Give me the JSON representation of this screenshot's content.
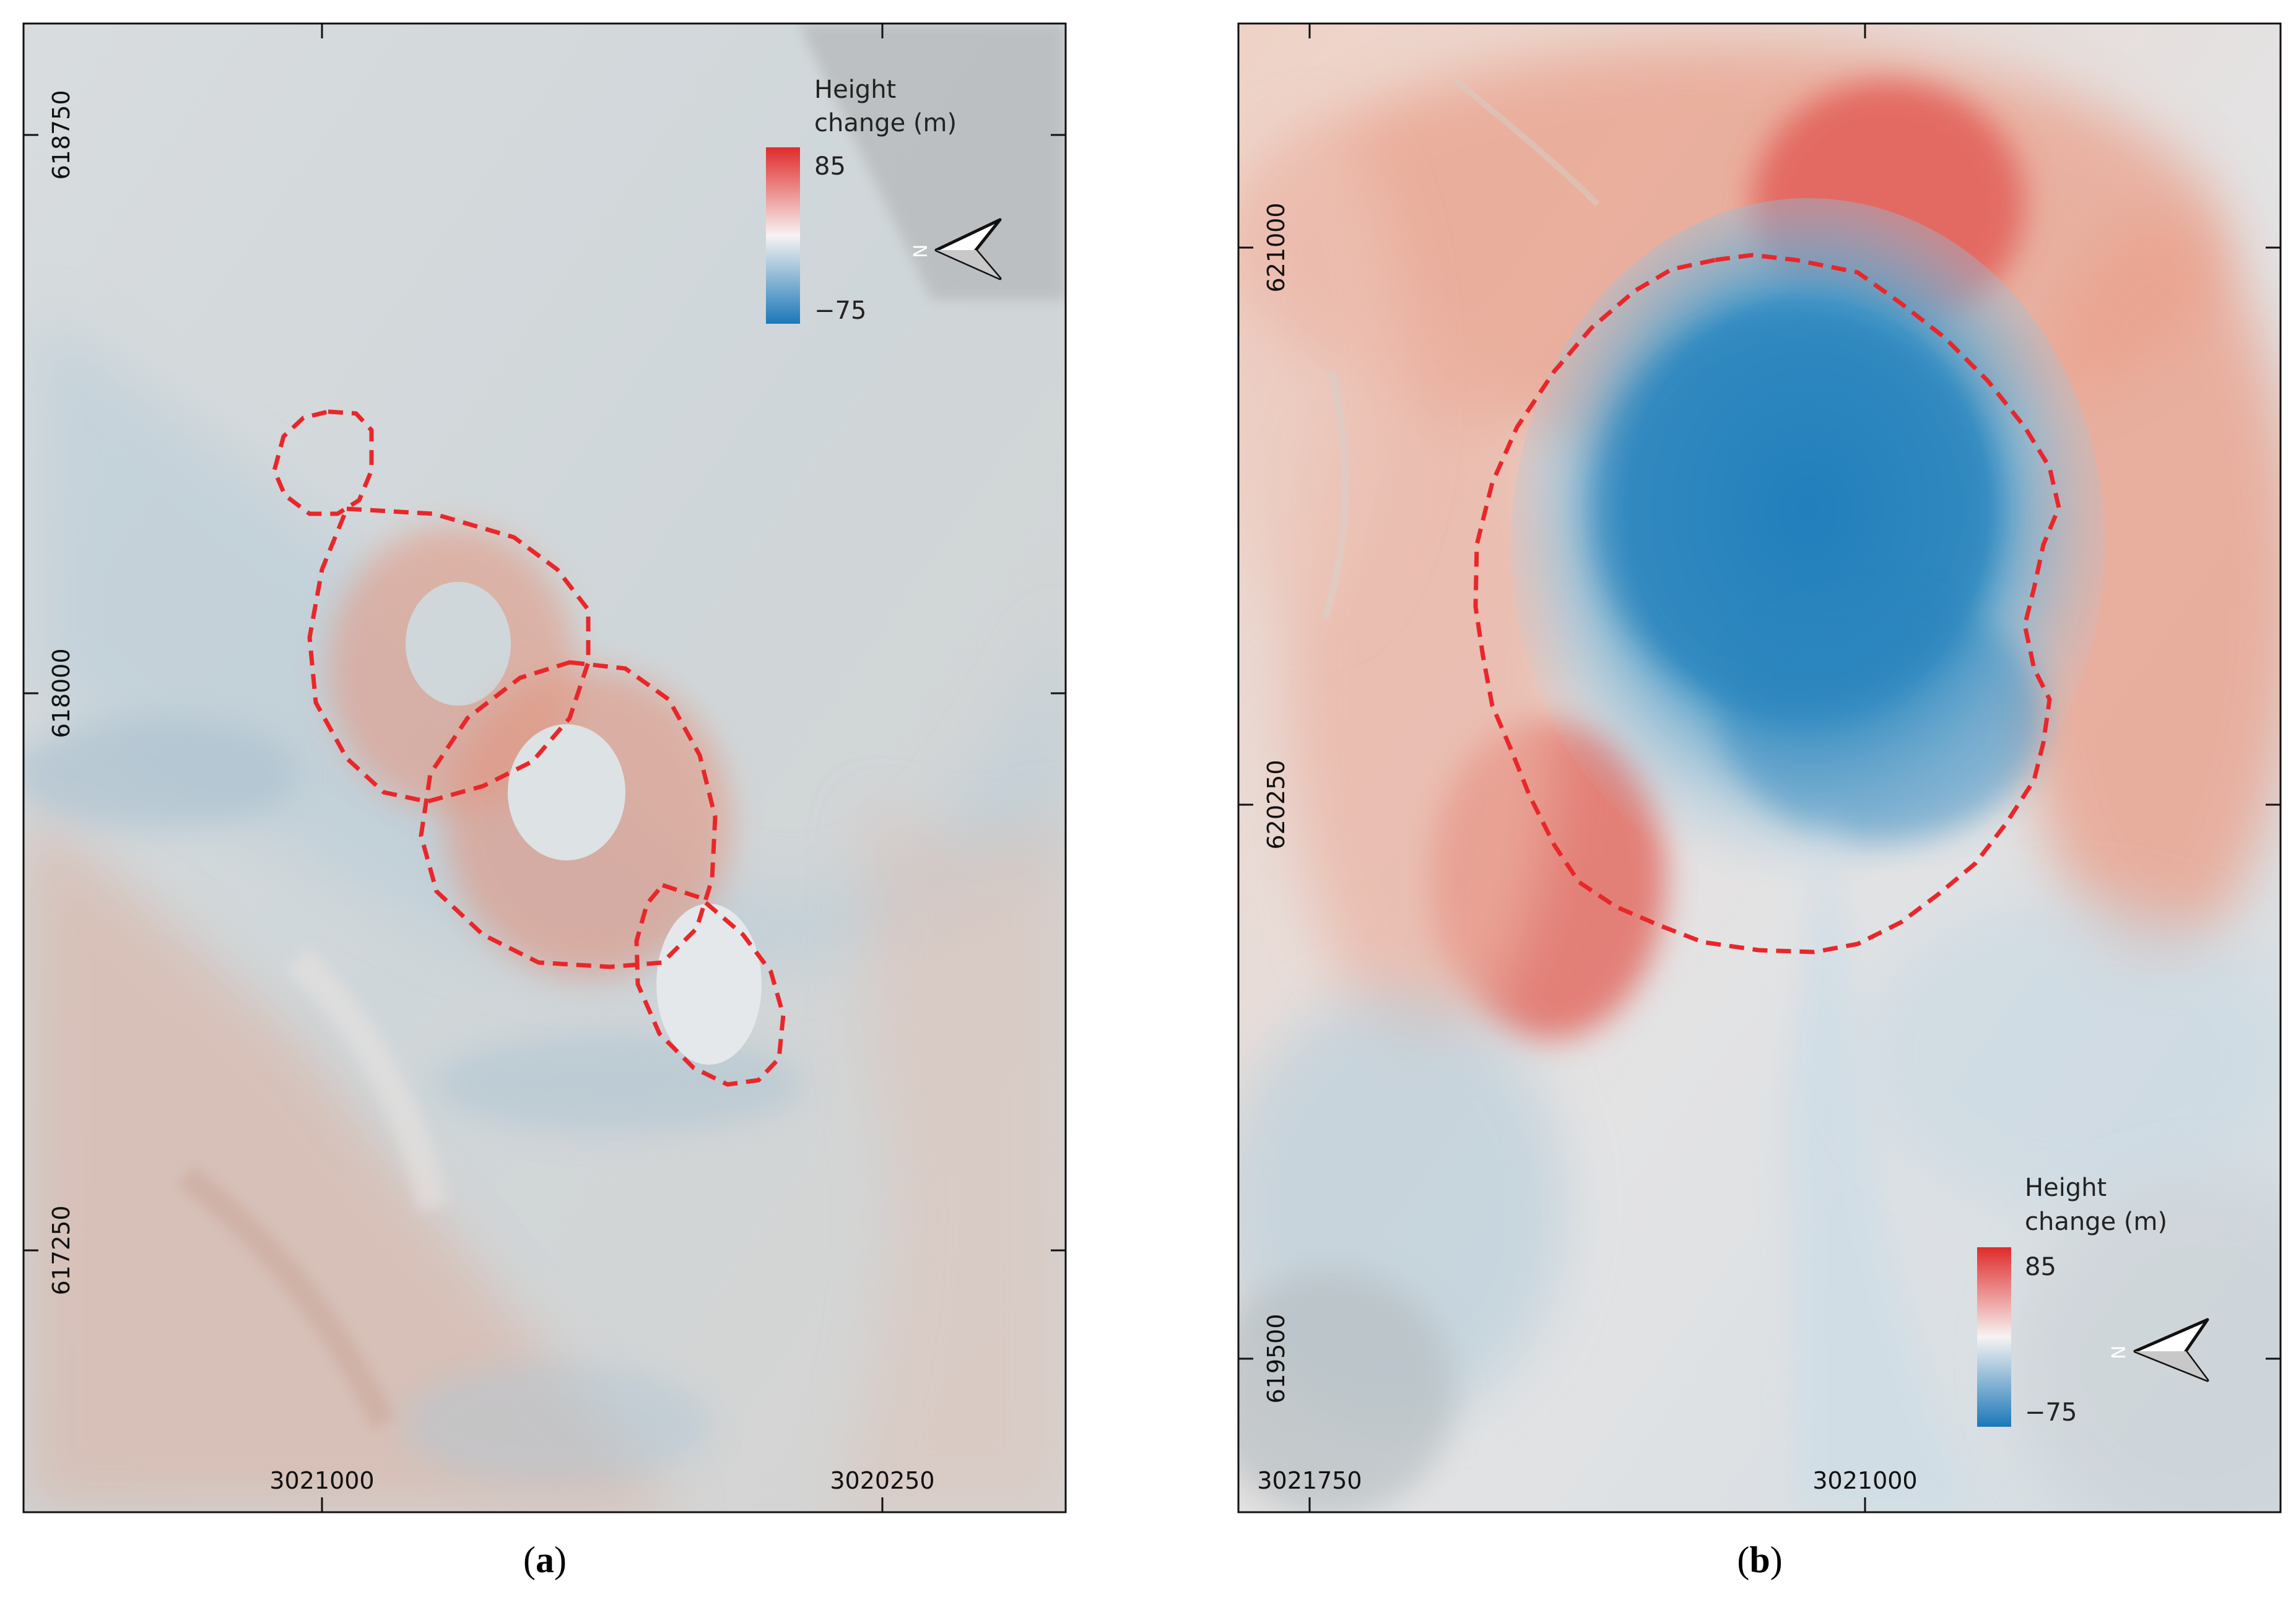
{
  "figure": {
    "panels": [
      {
        "id": "a",
        "caption_open": "(",
        "caption_letter": "a",
        "caption_close": ")",
        "legend": {
          "title_line1": "Height",
          "title_line2": "change (m)",
          "max_label": "85",
          "min_label": "−75",
          "max_value": 85,
          "min_value": -75,
          "color_high": "#e02b2b",
          "color_mid": "#f6f3f2",
          "color_low": "#1b78b8"
        },
        "north_arrow": {
          "label": "N"
        },
        "y_ticks": [
          "618750",
          "618000",
          "617250"
        ],
        "x_ticks": [
          "3021000",
          "3020250"
        ]
      },
      {
        "id": "b",
        "caption_open": "(",
        "caption_letter": "b",
        "caption_close": ")",
        "legend": {
          "title_line1": "Height",
          "title_line2": "change (m)",
          "max_label": "85",
          "min_label": "−75",
          "max_value": 85,
          "min_value": -75,
          "color_high": "#e02b2b",
          "color_mid": "#f6f3f2",
          "color_low": "#1b78b8"
        },
        "north_arrow": {
          "label": "N"
        },
        "y_ticks": [
          "621000",
          "620250",
          "619500"
        ],
        "x_ticks": [
          "3021750",
          "3021000"
        ]
      }
    ],
    "outline_color": "#e8272a"
  }
}
